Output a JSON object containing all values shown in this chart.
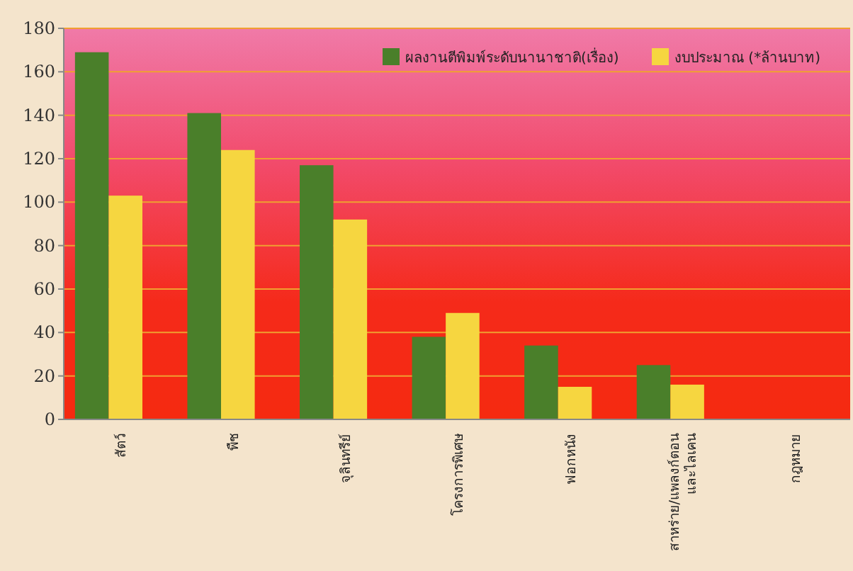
{
  "chart_data": {
    "type": "bar",
    "categories": [
      "สัตว์",
      "พืช",
      "จุลินทรีย์",
      "โครงการพิเศษ",
      "ฟอกหนัง",
      "สาหร่าย/แพลงก์ตอน\nและไลเคน",
      "กฎหมาย"
    ],
    "series": [
      {
        "name": "ผลงานตีพิมพ์ระดับนานาชาติ(เรื่อง)",
        "color": "#4a7f2a",
        "values": [
          169,
          141,
          117,
          38,
          34,
          25,
          null
        ]
      },
      {
        "name": "งบประมาณ (*ล้านบาท)",
        "color": "#f6d640",
        "values": [
          103,
          124,
          92,
          49,
          15,
          16,
          null
        ]
      }
    ],
    "ylim": [
      0,
      180
    ],
    "yticks": [
      0,
      20,
      40,
      60,
      80,
      100,
      120,
      140,
      160,
      180
    ],
    "grid": "y",
    "legend": "top right"
  }
}
